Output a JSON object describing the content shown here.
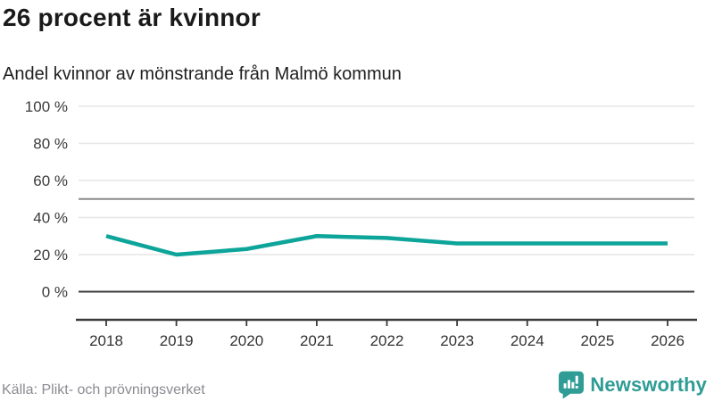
{
  "header": {
    "title": "26 procent är kvinnor",
    "subtitle": "Andel kvinnor av mönstrande från Malmö kommun"
  },
  "footer": {
    "source": "Källa: Plikt- och prövningsverket",
    "logo_text": "Newsworthy"
  },
  "colors": {
    "line": "#0da49a",
    "grid_light": "#e6e6e6",
    "grid_reference": "#8a8a8a",
    "axis_dark": "#3a3a3a",
    "tick_label": "#3a3a3a",
    "logo_teal": "#2f9c95"
  },
  "chart_data": {
    "type": "line",
    "title": "26 procent är kvinnor",
    "subtitle": "Andel kvinnor av mönstrande från Malmö kommun",
    "x": [
      "2018",
      "2019",
      "2020",
      "2021",
      "2022",
      "2023",
      "2024",
      "2025",
      "2026"
    ],
    "series": [
      {
        "name": "Andel kvinnor av mönstrande, Malmö kommun (%)",
        "values": [
          30,
          20,
          23,
          30,
          29,
          26,
          26,
          26,
          26
        ]
      }
    ],
    "xlabel": "",
    "ylabel": "",
    "ylim": [
      0,
      100
    ],
    "ytick_values": [
      0,
      20,
      40,
      60,
      80,
      100
    ],
    "ytick_labels": [
      "0 %",
      "20 %",
      "40 %",
      "60 %",
      "80 %",
      "100 %"
    ],
    "reference_line": 50,
    "zero_line": 0,
    "grid": "horizontal",
    "legend": "none",
    "unit": "%"
  }
}
